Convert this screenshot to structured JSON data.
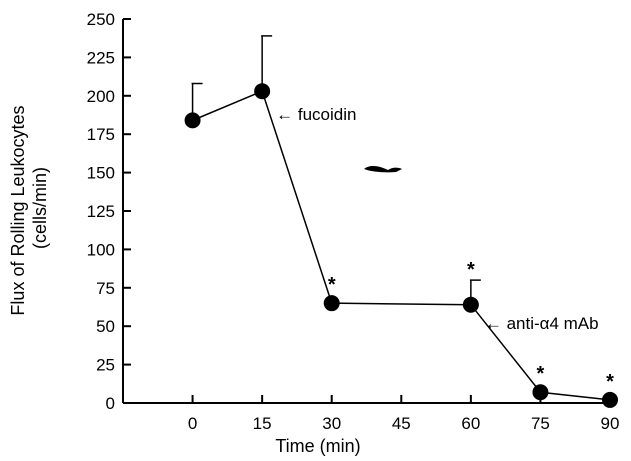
{
  "chart_data": {
    "type": "line",
    "title": "",
    "xlabel": "Time (min)",
    "ylabel_lines": [
      "Flux of Rolling Leukocytes",
      "(cells/min)"
    ],
    "xlim": [
      -15,
      90
    ],
    "ylim": [
      0,
      250
    ],
    "x_ticks": [
      0,
      15,
      30,
      45,
      60,
      75,
      90
    ],
    "y_ticks": [
      0,
      25,
      50,
      75,
      100,
      125,
      150,
      175,
      200,
      225,
      250
    ],
    "series": [
      {
        "x": [
          0,
          15,
          30,
          60,
          75,
          90
        ],
        "y": [
          184,
          203,
          65,
          64,
          7,
          2
        ],
        "error_upper": [
          24,
          36,
          0,
          16,
          0,
          0
        ],
        "significant": [
          false,
          false,
          true,
          true,
          true,
          true
        ]
      }
    ],
    "significance_marker": "*",
    "annotations": [
      {
        "text": "← fucoidin",
        "x": 15,
        "y": 188
      },
      {
        "text": "← anti-α4 mAb",
        "x": 60,
        "y": 52
      }
    ],
    "grid": false,
    "legend": "none"
  }
}
